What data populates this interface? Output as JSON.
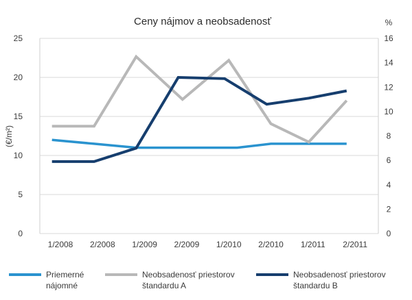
{
  "chart_data": {
    "type": "line",
    "title": "Ceny nájmov a neobsadenosť",
    "ylabel_left": "(€/m²)",
    "ylabel_right": "%",
    "y_left": {
      "lim": [
        0,
        25
      ],
      "ticks": [
        "0",
        "5",
        "10",
        "15",
        "20",
        "25"
      ]
    },
    "y_right": {
      "lim": [
        0,
        16
      ],
      "ticks": [
        "0",
        "2",
        "4",
        "6",
        "8",
        "10",
        "12",
        "14",
        "16"
      ]
    },
    "x_ticks": [
      "1/2008",
      "2/2008",
      "1/2009",
      "2/2009",
      "1/2010",
      "2/2010",
      "1/2011",
      "2/2011"
    ],
    "x_values": [
      0,
      1,
      2,
      3,
      4,
      5,
      6,
      7
    ],
    "grid": "horizontal",
    "legend_position": "bottom",
    "series": [
      {
        "name": "Priemerné nájomné",
        "axis": "left",
        "color": "#2a93cf",
        "points": [
          [
            -0.2,
            12.0
          ],
          [
            0.8,
            11.5
          ],
          [
            1.8,
            11.0
          ],
          [
            3.5,
            11.0
          ],
          [
            4.2,
            11.0
          ],
          [
            5.0,
            11.5
          ],
          [
            6.0,
            11.5
          ],
          [
            6.8,
            11.5
          ]
        ]
      },
      {
        "name": "Neobsadenosť priestorov štandardu A",
        "axis": "right",
        "color": "#b8b8b8",
        "points": [
          [
            -0.2,
            8.8
          ],
          [
            0.8,
            8.8
          ],
          [
            1.8,
            14.5
          ],
          [
            2.9,
            11.0
          ],
          [
            4.0,
            14.2
          ],
          [
            5.0,
            9.0
          ],
          [
            5.9,
            7.5
          ],
          [
            6.8,
            10.9
          ]
        ]
      },
      {
        "name": "Neobsadenosť priestorov štandardu B",
        "axis": "right",
        "color": "#163e6e",
        "points": [
          [
            -0.2,
            5.9
          ],
          [
            0.8,
            5.9
          ],
          [
            1.8,
            7.0
          ],
          [
            2.8,
            12.8
          ],
          [
            3.9,
            12.7
          ],
          [
            4.9,
            10.6
          ],
          [
            5.9,
            11.1
          ],
          [
            6.8,
            11.7
          ]
        ]
      }
    ]
  },
  "legend": [
    {
      "line1": "Priemerné",
      "line2": "nájomné",
      "color": "#2a93cf"
    },
    {
      "line1": "Neobsadenosť priestorov",
      "line2": "štandardu A",
      "color": "#b8b8b8"
    },
    {
      "line1": "Neobsadenosť priestorov",
      "line2": "štandardu B",
      "color": "#163e6e"
    }
  ]
}
